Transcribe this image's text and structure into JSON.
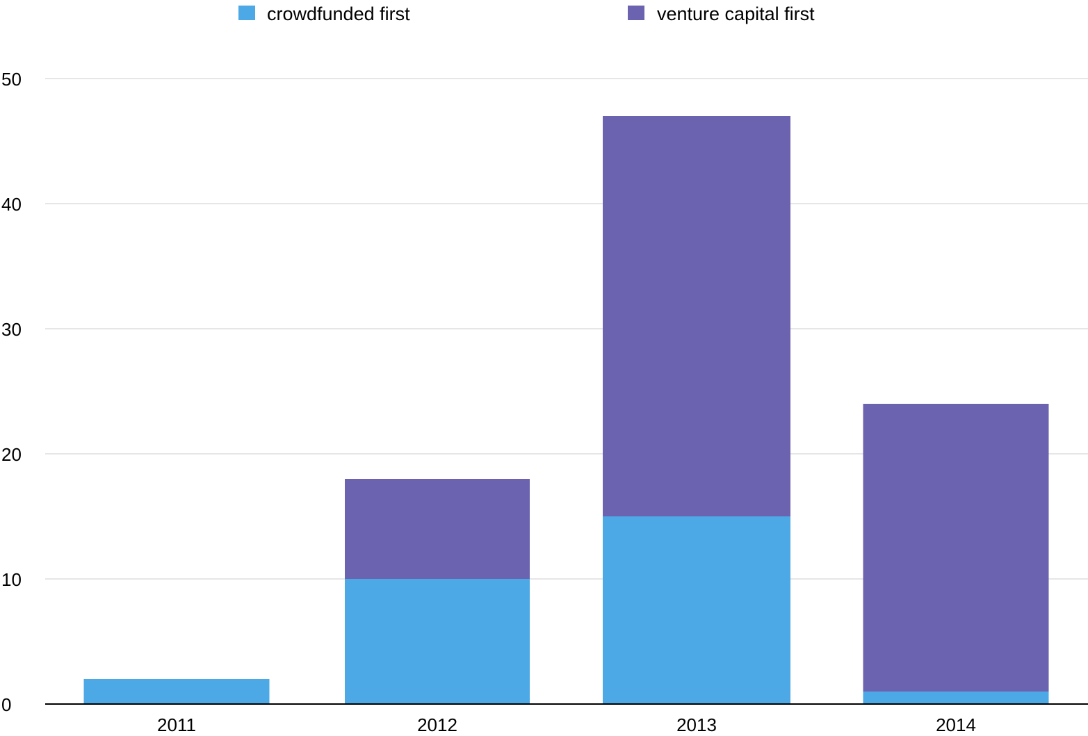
{
  "chart_data": {
    "type": "bar",
    "stacked": true,
    "title": "",
    "xlabel": "",
    "ylabel": "",
    "categories": [
      "2011",
      "2012",
      "2013",
      "2014"
    ],
    "series": [
      {
        "name": "crowdfunded first",
        "color": "#4DA9E6",
        "values": [
          2,
          10,
          15,
          1
        ]
      },
      {
        "name": "venture capital first",
        "color": "#6C63B0",
        "values": [
          0,
          8,
          32,
          23
        ]
      }
    ],
    "ylim": [
      0,
      50
    ],
    "yticks": [
      "0",
      "10",
      "20",
      "30",
      "40",
      "50"
    ],
    "grid": true,
    "legend_position": "top-center"
  }
}
